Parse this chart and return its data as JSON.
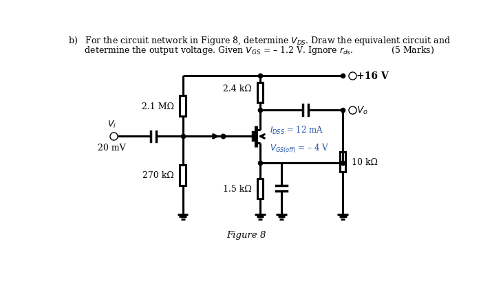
{
  "bg_color": "#ffffff",
  "line_color": "#000000",
  "labels": {
    "R1": "2.1 MΩ",
    "R2": "270 kΩ",
    "RD": "2.4 kΩ",
    "RS": "1.5 kΩ",
    "RL": "10 kΩ",
    "VDD": "+16 V",
    "Vo": "$V_o$",
    "IDSS": "$I_{DSS}$ = 12 mA",
    "VGSoff": "$V_{GS(off)}$ = – 4 V"
  },
  "figure_label": "Figure 8",
  "text_line1": "b)   For the circuit network in Figure 8, determine $V_{DS}$. Draw the equivalent circuit and",
  "text_line2": "      determine the output voltage. Given $V_{GS}$ = – 1.2 V. Ignore $r_{ds}$.              (5 Marks)"
}
